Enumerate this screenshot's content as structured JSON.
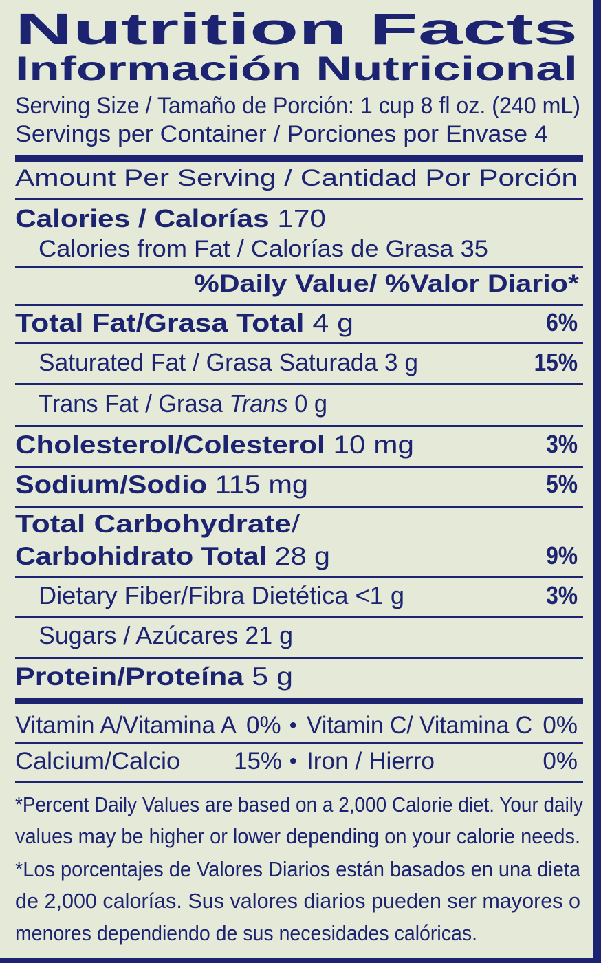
{
  "title": "Nutrition Facts",
  "title_es": "Información Nutricional",
  "serving_size": "Serving Size / Tamaño de Porción: 1 cup 8 fl oz. (240 mL)",
  "servings_per_container": "Servings per Container / Porciones por Envase 4",
  "amount_per_serving": "Amount Per Serving / Cantidad Por Porción",
  "calories": {
    "label": "Calories / Calorías",
    "value": "170"
  },
  "calories_from_fat": "Calories from Fat / Calorías de Grasa 35",
  "daily_value_header": "%Daily Value/ %Valor Diario*",
  "nutrients": {
    "total_fat": {
      "label": "Total Fat/Grasa Total",
      "amount": "4 g",
      "dv": "6%"
    },
    "saturated_fat": {
      "label": "Saturated Fat / Grasa Saturada 3 g",
      "dv": "15%"
    },
    "trans_fat": {
      "label": "Trans Fat / Grasa",
      "label_italic": "Trans",
      "amount": "0 g"
    },
    "cholesterol": {
      "label": "Cholesterol/Colesterol",
      "amount": "10 mg",
      "dv": "3%"
    },
    "sodium": {
      "label": "Sodium/Sodio",
      "amount": "115 mg",
      "dv": "5%"
    },
    "total_carb": {
      "label1": "Total Carbohydrate",
      "slash": "/",
      "label2": "Carbohidrato Total",
      "amount": "28 g",
      "dv": "9%"
    },
    "dietary_fiber": {
      "label": "Dietary Fiber/Fibra Dietética <1 g",
      "dv": "3%"
    },
    "sugars": {
      "label": "Sugars / Azúcares 21 g"
    },
    "protein": {
      "label": "Protein/Proteína",
      "amount": "5 g"
    }
  },
  "vitamins": {
    "vitamin_a": {
      "label": "Vitamin A/Vitamina A",
      "value": "0%"
    },
    "vitamin_c": {
      "label": "Vitamin C/ Vitamina C",
      "value": "0%"
    },
    "calcium": {
      "label": "Calcium/Calcio",
      "value": "15%"
    },
    "iron": {
      "label": "Iron / Hierro",
      "value": "0%"
    },
    "bullet": "•"
  },
  "footnote": [
    "*Percent Daily Values are based on a 2,000 Calorie diet. Your daily",
    "values may be higher or lower depending on your calorie needs.",
    "*Los porcentajes de Valores Diarios están basados en una dieta",
    "de 2,000 calorías. Sus valores diarios pueden ser mayores o",
    "menores dependiendo de sus necesidades calóricas."
  ],
  "colors": {
    "ink": "#1c2370",
    "background": "#e4e9d8"
  }
}
